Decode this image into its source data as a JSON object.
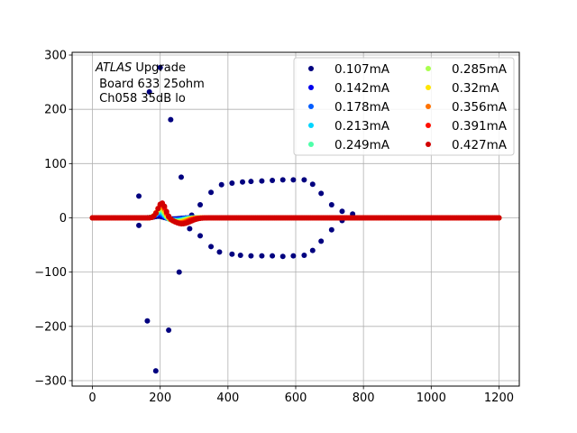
{
  "chart_data": {
    "type": "scatter",
    "title": "",
    "xlabel": "",
    "ylabel": "",
    "xlim": [
      -60,
      1260
    ],
    "ylim": [
      -310,
      305
    ],
    "grid": true,
    "legend_placement": "upper-right",
    "legend_columns": 2,
    "x_ticks": [
      0,
      200,
      400,
      600,
      800,
      1000,
      1200
    ],
    "y_ticks": [
      -300,
      -200,
      -100,
      0,
      100,
      200,
      300
    ],
    "annotation": {
      "italic": "ATLAS",
      "rest": " Upgrade",
      "line2": " Board 633 25ohm",
      "line3": " Ch058 35dB lo"
    },
    "x_start": 0,
    "x_step": 6.25,
    "x_count": 193,
    "series": [
      {
        "name": "0.107mA",
        "color": "#00007f",
        "pulse": {
          "amp": 3,
          "center": 195,
          "width": 18,
          "under": -2,
          "under_center": 240,
          "under_width": 25
        },
        "outliers": [
          {
            "x": 137,
            "y": -14
          },
          {
            "x": 137,
            "y": 40
          },
          {
            "x": 162,
            "y": -190
          },
          {
            "x": 168,
            "y": 232
          },
          {
            "x": 187,
            "y": -282
          },
          {
            "x": 200,
            "y": 277
          },
          {
            "x": 225,
            "y": -207
          },
          {
            "x": 231,
            "y": 181
          },
          {
            "x": 256,
            "y": -100
          },
          {
            "x": 262,
            "y": 75
          },
          {
            "x": 287,
            "y": -20
          },
          {
            "x": 293,
            "y": 5
          },
          {
            "x": 318,
            "y": -33
          },
          {
            "x": 318,
            "y": 24
          },
          {
            "x": 350,
            "y": -53
          },
          {
            "x": 350,
            "y": 47
          },
          {
            "x": 375,
            "y": -63
          },
          {
            "x": 381,
            "y": 61
          },
          {
            "x": 412,
            "y": -67
          },
          {
            "x": 412,
            "y": 64
          },
          {
            "x": 437,
            "y": -69
          },
          {
            "x": 443,
            "y": 66
          },
          {
            "x": 468,
            "y": -70
          },
          {
            "x": 468,
            "y": 67
          },
          {
            "x": 500,
            "y": -70
          },
          {
            "x": 500,
            "y": 68
          },
          {
            "x": 531,
            "y": -70
          },
          {
            "x": 531,
            "y": 69
          },
          {
            "x": 562,
            "y": -71
          },
          {
            "x": 562,
            "y": 70
          },
          {
            "x": 593,
            "y": -70
          },
          {
            "x": 593,
            "y": 70
          },
          {
            "x": 625,
            "y": -69
          },
          {
            "x": 625,
            "y": 70
          },
          {
            "x": 650,
            "y": -60
          },
          {
            "x": 650,
            "y": 62
          },
          {
            "x": 675,
            "y": -43
          },
          {
            "x": 675,
            "y": 45
          },
          {
            "x": 706,
            "y": -22
          },
          {
            "x": 706,
            "y": 24
          },
          {
            "x": 737,
            "y": -5
          },
          {
            "x": 737,
            "y": 12
          },
          {
            "x": 768,
            "y": 3
          },
          {
            "x": 768,
            "y": 7
          }
        ]
      },
      {
        "name": "0.142mA",
        "color": "#0000ed",
        "pulse": {
          "amp": 6,
          "center": 197,
          "width": 17,
          "under": -3,
          "under_center": 242,
          "under_width": 25
        }
      },
      {
        "name": "0.178mA",
        "color": "#005cff",
        "pulse": {
          "amp": 9,
          "center": 198,
          "width": 16,
          "under": -4,
          "under_center": 245,
          "under_width": 26
        }
      },
      {
        "name": "0.213mA",
        "color": "#00d5ff",
        "pulse": {
          "amp": 12,
          "center": 199,
          "width": 16,
          "under": -5,
          "under_center": 248,
          "under_width": 27
        }
      },
      {
        "name": "0.249mA",
        "color": "#4effa9",
        "pulse": {
          "amp": 15,
          "center": 200,
          "width": 16,
          "under": -6,
          "under_center": 250,
          "under_width": 28
        }
      },
      {
        "name": "0.285mA",
        "color": "#a9ff4e",
        "pulse": {
          "amp": 18,
          "center": 201,
          "width": 16,
          "under": -7,
          "under_center": 252,
          "under_width": 28
        }
      },
      {
        "name": "0.32mA",
        "color": "#ffe500",
        "pulse": {
          "amp": 21,
          "center": 202,
          "width": 16,
          "under": -8,
          "under_center": 255,
          "under_width": 29
        }
      },
      {
        "name": "0.356mA",
        "color": "#ff7200",
        "pulse": {
          "amp": 24,
          "center": 203,
          "width": 16,
          "under": -9,
          "under_center": 258,
          "under_width": 30
        }
      },
      {
        "name": "0.391mA",
        "color": "#ff0f00",
        "pulse": {
          "amp": 26,
          "center": 204,
          "width": 16,
          "under": -10,
          "under_center": 262,
          "under_width": 32
        }
      },
      {
        "name": "0.427mA",
        "color": "#d20000",
        "pulse": {
          "amp": 28,
          "center": 205,
          "width": 16,
          "under": -11,
          "under_center": 265,
          "under_width": 34
        }
      }
    ]
  }
}
